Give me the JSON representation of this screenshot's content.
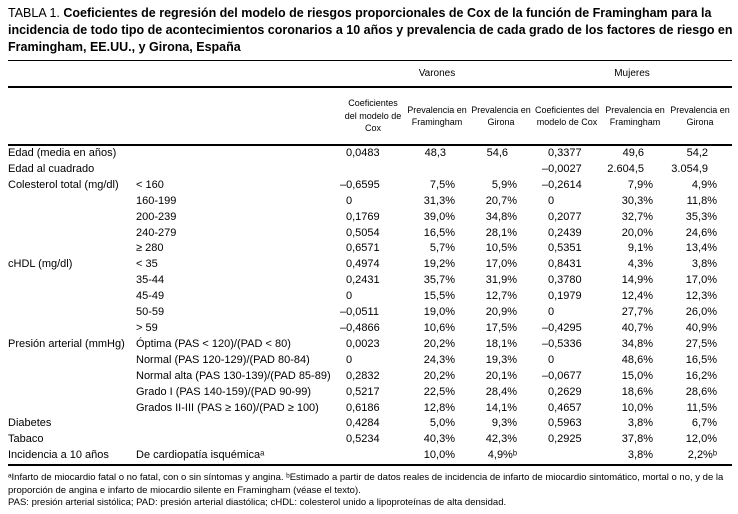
{
  "colors": {
    "text": "#000000",
    "background": "#ffffff"
  },
  "title": {
    "label": "TABLA 1.",
    "text": "Coeficientes de regresión del modelo de riesgos proporcionales de Cox de la función de Framingham para la incidencia de todo tipo de acontecimientos coronarios a 10 años y prevalencia de cada grado de los factores de riesgo en Framingham, EE.UU., y Girona, España"
  },
  "table": {
    "group_headers": [
      "Varones",
      "Mujeres"
    ],
    "column_headers": [
      "Coeficientes del modelo de Cox",
      "Prevalencia en Framingham",
      "Prevalencia en Girona",
      "Coeficientes del modelo de Cox",
      "Prevalencia en Framingham",
      "Prevalencia en Girona"
    ],
    "rows": [
      {
        "factor": "Edad (media en años)",
        "grade": "",
        "values": [
          "0,0483",
          "48,3",
          "54,6",
          "0,3377",
          "49,6",
          "54,2"
        ]
      },
      {
        "factor": "Edad al cuadrado",
        "grade": "",
        "values": [
          "",
          "",
          "",
          "–0,0027",
          "2.604,5",
          "3.054,9"
        ]
      },
      {
        "factor": "Colesterol total (mg/dl)",
        "grade": "< 160",
        "values": [
          "–0,6595",
          "7,5%",
          "5,9%",
          "–0,2614",
          "7,9%",
          "4,9%"
        ]
      },
      {
        "factor": "",
        "grade": "160-199",
        "values": [
          "0",
          "31,3%",
          "20,7%",
          "0",
          "30,3%",
          "11,8%"
        ]
      },
      {
        "factor": "",
        "grade": "200-239",
        "values": [
          "0,1769",
          "39,0%",
          "34,8%",
          "0,2077",
          "32,7%",
          "35,3%"
        ]
      },
      {
        "factor": "",
        "grade": "240-279",
        "values": [
          "0,5054",
          "16,5%",
          "28,1%",
          "0,2439",
          "20,0%",
          "24,6%"
        ]
      },
      {
        "factor": "",
        "grade": "≥ 280",
        "values": [
          "0,6571",
          "5,7%",
          "10,5%",
          "0,5351",
          "9,1%",
          "13,4%"
        ]
      },
      {
        "factor": "cHDL (mg/dl)",
        "grade": "< 35",
        "values": [
          "0,4974",
          "19,2%",
          "17,0%",
          "0,8431",
          "4,3%",
          "3,8%"
        ]
      },
      {
        "factor": "",
        "grade": "35-44",
        "values": [
          "0,2431",
          "35,7%",
          "31,9%",
          "0,3780",
          "14,9%",
          "17,0%"
        ]
      },
      {
        "factor": "",
        "grade": "45-49",
        "values": [
          "0",
          "15,5%",
          "12,7%",
          "0,1979",
          "12,4%",
          "12,3%"
        ]
      },
      {
        "factor": "",
        "grade": "50-59",
        "values": [
          "–0,0511",
          "19,0%",
          "20,9%",
          "0",
          "27,7%",
          "26,0%"
        ]
      },
      {
        "factor": "",
        "grade": "> 59",
        "values": [
          "–0,4866",
          "10,6%",
          "17,5%",
          "–0,4295",
          "40,7%",
          "40,9%"
        ]
      },
      {
        "factor": "Presión arterial (mmHg)",
        "grade": "Óptima (PAS < 120)/(PAD < 80)",
        "values": [
          "0,0023",
          "20,2%",
          "18,1%",
          "–0,5336",
          "34,8%",
          "27,5%"
        ]
      },
      {
        "factor": "",
        "grade": "Normal (PAS 120-129)/(PAD 80-84)",
        "values": [
          "0",
          "24,3%",
          "19,3%",
          "0",
          "48,6%",
          "16,5%"
        ]
      },
      {
        "factor": "",
        "grade": "Normal alta (PAS 130-139)/(PAD 85-89)",
        "values": [
          "0,2832",
          "20,2%",
          "20,1%",
          "–0,0677",
          "15,0%",
          "16,2%"
        ]
      },
      {
        "factor": "",
        "grade": "Grado I (PAS 140-159)/(PAD 90-99)",
        "values": [
          "0,5217",
          "22,5%",
          "28,4%",
          "0,2629",
          "18,6%",
          "28,6%"
        ]
      },
      {
        "factor": "",
        "grade": "Grados II-III (PAS ≥ 160)/(PAD ≥ 100)",
        "values": [
          "0,6186",
          "12,8%",
          "14,1%",
          "0,4657",
          "10,0%",
          "11,5%"
        ]
      },
      {
        "factor": "Diabetes",
        "grade": "",
        "values": [
          "0,4284",
          "5,0%",
          "9,3%",
          "0,5963",
          "3,8%",
          "6,7%"
        ]
      },
      {
        "factor": "Tabaco",
        "grade": "",
        "values": [
          "0,5234",
          "40,3%",
          "42,3%",
          "0,2925",
          "37,8%",
          "12,0%"
        ]
      },
      {
        "factor": "Incidencia a 10 años",
        "grade": "De cardiopatía isquémicaᵃ",
        "values": [
          "",
          "10,0%",
          "4,9%ᵇ",
          "",
          "3,8%",
          "2,2%ᵇ"
        ]
      }
    ]
  },
  "footnotes": [
    "ᵃInfarto de miocardio fatal o no fatal, con o sin síntomas y angina. ᵇEstimado a partir de datos reales de incidencia de infarto de miocardio sintomático, mortal o no, y de la proporción de angina e infarto de miocardio silente en Framingham (véase el texto).",
    "PAS: presión arterial sistólica; PAD: presión arterial diastólica; cHDL: colesterol unido a lipoproteínas de alta densidad."
  ]
}
